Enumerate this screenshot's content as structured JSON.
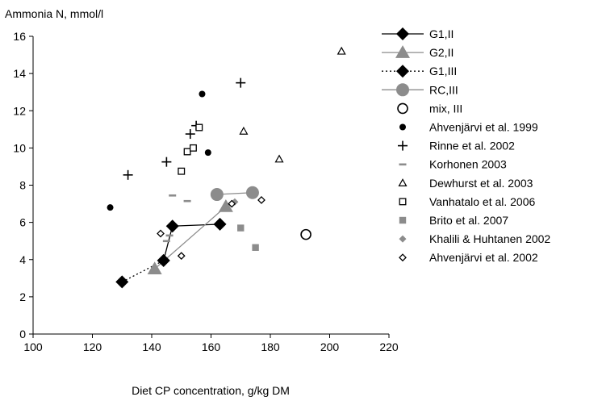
{
  "chart_data": {
    "type": "scatter",
    "title": "",
    "xlabel": "Diet CP concentration, g/kg DM",
    "ylabel": "Ammonia N, mmol/l",
    "xlim": [
      100,
      220
    ],
    "ylim": [
      0,
      16
    ],
    "xticks": [
      100,
      120,
      140,
      160,
      180,
      200,
      220
    ],
    "yticks": [
      0,
      2,
      4,
      6,
      8,
      10,
      12,
      14,
      16
    ],
    "grid": false,
    "legend_position": "right",
    "series": [
      {
        "name": "G1,II",
        "marker": "diamond-filled",
        "line": "solid",
        "color": "#000000",
        "points": [
          [
            144,
            3.95
          ],
          [
            147,
            5.8
          ],
          [
            163,
            5.9
          ]
        ]
      },
      {
        "name": "G2,II",
        "marker": "triangle-filled",
        "line": "solid",
        "color": "#8c8c8c",
        "points": [
          [
            141,
            3.5
          ],
          [
            165,
            6.85
          ]
        ]
      },
      {
        "name": "G1,III",
        "marker": "diamond-filled",
        "line": "dotted",
        "color": "#000000",
        "points": [
          [
            130,
            2.8
          ],
          [
            144,
            3.95
          ]
        ]
      },
      {
        "name": "RC,III",
        "marker": "circle-filled",
        "line": "solid",
        "color": "#8c8c8c",
        "points": [
          [
            162,
            7.5
          ],
          [
            174,
            7.6
          ]
        ]
      },
      {
        "name": "mix, III",
        "marker": "circle-open",
        "line": "none",
        "color": "#000000",
        "points": [
          [
            192,
            5.35
          ]
        ]
      },
      {
        "name": "Ahvenjärvi et al. 1999",
        "marker": "dot",
        "line": "none",
        "color": "#000000",
        "points": [
          [
            126,
            6.8
          ],
          [
            157,
            12.9
          ],
          [
            159,
            9.75
          ]
        ]
      },
      {
        "name": "Rinne et al. 2002",
        "marker": "plus",
        "line": "none",
        "color": "#000000",
        "points": [
          [
            132,
            8.55
          ],
          [
            145,
            9.25
          ],
          [
            153,
            10.75
          ],
          [
            155,
            11.2
          ],
          [
            170,
            13.5
          ]
        ]
      },
      {
        "name": "Korhonen 2003",
        "marker": "dash",
        "line": "none",
        "color": "#8c8c8c",
        "points": [
          [
            145,
            5.0
          ],
          [
            146,
            5.3
          ],
          [
            147,
            7.45
          ],
          [
            152,
            7.15
          ]
        ]
      },
      {
        "name": "Dewhurst et al. 2003",
        "marker": "triangle-open",
        "line": "none",
        "color": "#000000",
        "points": [
          [
            171,
            10.9
          ],
          [
            183,
            9.4
          ],
          [
            204,
            15.2
          ]
        ]
      },
      {
        "name": "Vanhatalo et al. 2006",
        "marker": "square-open",
        "line": "none",
        "color": "#000000",
        "points": [
          [
            150,
            8.75
          ],
          [
            152,
            9.8
          ],
          [
            154,
            10.0
          ],
          [
            156,
            11.1
          ]
        ]
      },
      {
        "name": "Brito et al. 2007",
        "marker": "square-filled",
        "line": "none",
        "color": "#8c8c8c",
        "points": [
          [
            170,
            5.7
          ],
          [
            175,
            4.65
          ]
        ]
      },
      {
        "name": "Khalili & Huhtanen 2002",
        "marker": "diamond-small-filled",
        "line": "none",
        "color": "#8c8c8c",
        "points": [
          [
            165,
            6.85
          ],
          [
            168,
            7.1
          ]
        ]
      },
      {
        "name": "Ahvenjärvi et al. 2002",
        "marker": "diamond-open",
        "line": "none",
        "color": "#000000",
        "points": [
          [
            143,
            5.4
          ],
          [
            150,
            4.2
          ],
          [
            167,
            7.0
          ],
          [
            177,
            7.2
          ]
        ]
      }
    ]
  }
}
